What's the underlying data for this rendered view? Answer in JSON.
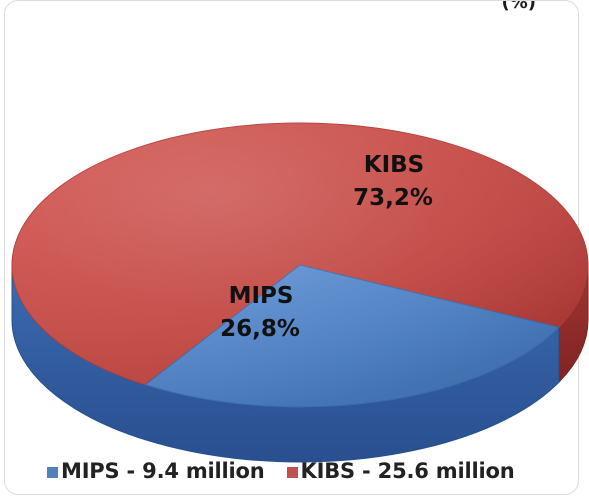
{
  "chart_data": {
    "type": "pie",
    "title": "",
    "visible_title_fragment": "(%)",
    "categories": [
      "MIPS",
      "KIBS"
    ],
    "values": [
      26.8,
      73.2
    ],
    "unit": "%",
    "labels": [
      {
        "name": "MIPS",
        "percent": "26,8%"
      },
      {
        "name": "KIBS",
        "percent": "73,2%"
      }
    ],
    "legend": [
      {
        "name": "MIPS - 9.4 million",
        "value": 9.4,
        "unit": "million"
      },
      {
        "name": "KIBS - 25.6 million",
        "value": 25.6,
        "unit": "million"
      }
    ],
    "legend_position": "bottom",
    "colors": {
      "MIPS": "#4f81bd",
      "KIBS": "#c0504d"
    }
  }
}
